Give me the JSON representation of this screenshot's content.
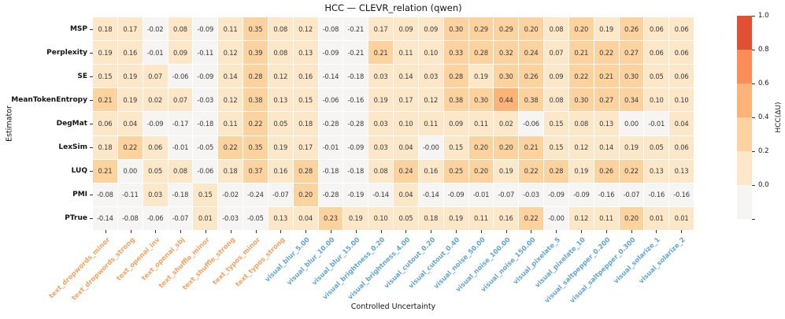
{
  "figure": {
    "title": "HCC — CLEVR_relation (qwen)",
    "x_axis_title": "Controlled Uncertainty",
    "y_axis_title": "Estimator"
  },
  "chart_data": {
    "type": "heatmap",
    "title": "HCC — CLEVR_relation (qwen)",
    "xlabel": "Controlled Uncertainty",
    "ylabel": "Estimator",
    "legend_position": "right-colorbar",
    "rows": [
      "MSP",
      "Perplexity",
      "SE",
      "MeanTokenEntropy",
      "DegMat",
      "LexSim",
      "LUQ",
      "PMI",
      "PTrue"
    ],
    "columns": [
      "text_dropwords_minor",
      "text_dropwords_strong",
      "text_openai_inv",
      "text_openai_sbj",
      "text_shuffle_minor",
      "text_shuffle_strong",
      "text_typos_minor",
      "text_typos_strong",
      "visual_blur_5.00",
      "visual_blur_10.00",
      "visual_blur_15.00",
      "visual_brightness_0.20",
      "visual_brightness_4.00",
      "visual_cutout_0.20",
      "visual_cutout_0.40",
      "visual_noise_50.00",
      "visual_noise_100.00",
      "visual_noise_150.00",
      "visual_pixelate_5",
      "visual_pixelate_10",
      "visual_saltpepper_0.200",
      "visual_saltpepper_0.300",
      "visual_solarize_1",
      "visual_solarize_2"
    ],
    "values": [
      [
        0.18,
        0.17,
        -0.02,
        0.08,
        -0.09,
        0.11,
        0.35,
        0.08,
        0.12,
        -0.08,
        -0.21,
        0.17,
        0.09,
        0.09,
        0.3,
        0.29,
        0.29,
        0.2,
        0.08,
        0.2,
        0.19,
        0.26,
        0.06,
        0.06
      ],
      [
        0.19,
        0.16,
        -0.01,
        0.09,
        -0.11,
        0.12,
        0.39,
        0.08,
        0.13,
        -0.09,
        -0.21,
        0.21,
        0.11,
        0.1,
        0.33,
        0.28,
        0.32,
        0.24,
        0.07,
        0.21,
        0.22,
        0.27,
        0.06,
        0.06
      ],
      [
        0.15,
        0.19,
        0.07,
        -0.06,
        -0.09,
        0.14,
        0.28,
        0.12,
        0.16,
        -0.14,
        -0.18,
        0.03,
        0.14,
        0.03,
        0.28,
        0.19,
        0.3,
        0.26,
        0.09,
        0.22,
        0.21,
        0.3,
        0.05,
        0.06
      ],
      [
        0.21,
        0.19,
        0.02,
        0.07,
        -0.03,
        0.12,
        0.38,
        0.13,
        0.15,
        -0.06,
        -0.16,
        0.19,
        0.17,
        0.12,
        0.38,
        0.3,
        0.44,
        0.38,
        0.08,
        0.3,
        0.27,
        0.34,
        0.1,
        0.1
      ],
      [
        0.06,
        0.04,
        -0.09,
        -0.17,
        -0.18,
        0.11,
        0.22,
        0.05,
        0.18,
        -0.28,
        -0.28,
        0.03,
        0.1,
        0.11,
        0.09,
        0.11,
        0.02,
        -0.06,
        0.15,
        0.08,
        0.13,
        0.0,
        -0.01,
        0.04
      ],
      [
        0.18,
        0.22,
        0.06,
        -0.01,
        -0.05,
        0.22,
        0.35,
        0.19,
        0.17,
        -0.01,
        -0.09,
        0.03,
        0.04,
        -0.0,
        0.15,
        0.2,
        0.2,
        0.21,
        0.15,
        0.12,
        0.14,
        0.19,
        0.05,
        0.06
      ],
      [
        0.21,
        0.0,
        0.05,
        0.08,
        -0.06,
        0.18,
        0.37,
        0.16,
        0.28,
        -0.18,
        -0.18,
        0.08,
        0.24,
        0.16,
        0.25,
        0.2,
        0.19,
        0.22,
        0.28,
        0.19,
        0.26,
        0.22,
        0.13,
        0.13
      ],
      [
        -0.08,
        -0.11,
        0.03,
        -0.18,
        0.15,
        -0.02,
        -0.24,
        -0.07,
        0.2,
        -0.28,
        -0.19,
        -0.14,
        0.04,
        -0.14,
        -0.09,
        -0.01,
        -0.07,
        -0.03,
        -0.09,
        -0.09,
        -0.16,
        -0.07,
        -0.16,
        -0.16
      ],
      [
        -0.14,
        -0.08,
        -0.06,
        -0.07,
        0.01,
        -0.03,
        -0.05,
        0.13,
        0.04,
        0.23,
        0.19,
        0.1,
        0.05,
        0.18,
        0.19,
        0.11,
        0.16,
        0.22,
        -0.0,
        0.12,
        0.11,
        0.2,
        0.01,
        0.01
      ]
    ],
    "colorbar": {
      "label": "HCC(ΔU)",
      "range": [
        0.0,
        1.0
      ],
      "tick_labels_top_to_bottom": [
        "1.0",
        "0.8",
        "0.6",
        "0.4",
        "0.2",
        "0.0"
      ],
      "bin_edges": [
        0.0,
        0.2,
        0.4,
        0.6,
        0.8,
        1.0
      ],
      "bin_colors_low_to_high": [
        "#fde7c9",
        "#fcd39e",
        "#fcb377",
        "#fc8d59",
        "#e25033"
      ],
      "under_color": "#f6f5f4"
    },
    "style": {
      "text_group_label_color": "#f7a160",
      "visual_group_label_color": "#61a6d2",
      "cell_text_color": "#393939",
      "gridline_color": "#ffffff"
    }
  }
}
